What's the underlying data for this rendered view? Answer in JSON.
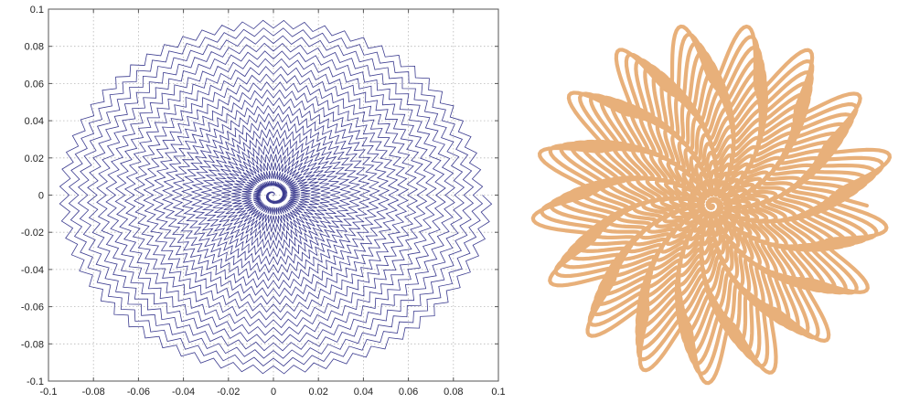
{
  "chart_data": [
    {
      "type": "line",
      "title": "",
      "xlabel": "",
      "ylabel": "",
      "xlim": [
        -0.1,
        0.1
      ],
      "ylim": [
        -0.1,
        0.1
      ],
      "grid": true,
      "xticks": [
        "-0.1",
        "-0.08",
        "-0.06",
        "-0.04",
        "-0.02",
        "0",
        "0.02",
        "0.04",
        "0.06",
        "0.08",
        "0.1"
      ],
      "yticks": [
        "0.1",
        "0.08",
        "0.06",
        "0.04",
        "0.02",
        "0",
        "-0.02",
        "-0.04",
        "-0.06",
        "-0.08",
        "-0.1"
      ],
      "series": [
        {
          "curve": "zigzag spiral",
          "color": "#3b3b8f",
          "turns": 22,
          "zigzag_per_turn": 64,
          "max_radius": 0.095
        }
      ]
    },
    {
      "type": "line",
      "title": "",
      "xlabel": "",
      "ylabel": "",
      "grid": false,
      "series": [
        {
          "curve": "wavy star spiral",
          "color": "#e8b07a",
          "turns": 20,
          "star_points": 17
        }
      ]
    }
  ]
}
